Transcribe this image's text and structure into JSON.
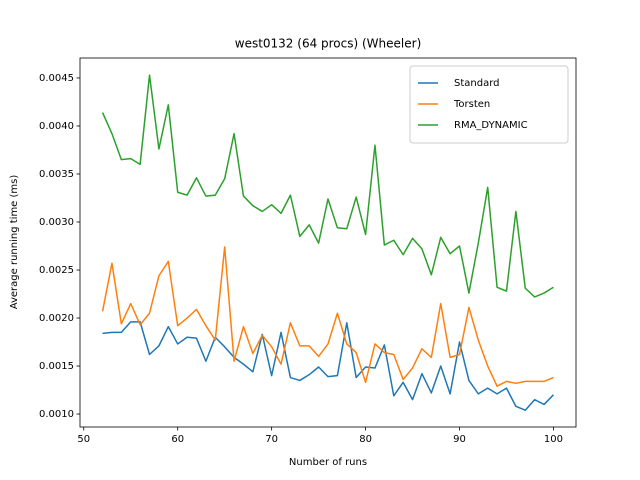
{
  "chart_data": {
    "type": "line",
    "title": "west0132 (64 procs) (Wheeler)",
    "xlabel": "Number of runs",
    "ylabel": "Average running time (ms)",
    "x": [
      52,
      53,
      54,
      55,
      56,
      57,
      58,
      59,
      60,
      61,
      62,
      63,
      64,
      65,
      66,
      67,
      68,
      69,
      70,
      71,
      72,
      73,
      74,
      75,
      76,
      77,
      78,
      79,
      80,
      81,
      82,
      83,
      84,
      85,
      86,
      87,
      88,
      89,
      90,
      91,
      92,
      93,
      94,
      95,
      96,
      97,
      98,
      99,
      100
    ],
    "series": [
      {
        "name": "Standard",
        "color": "#1f77b4",
        "values": [
          0.00184,
          0.00185,
          0.00185,
          0.00196,
          0.00196,
          0.00162,
          0.00171,
          0.00191,
          0.00173,
          0.0018,
          0.00179,
          0.00155,
          0.0018,
          0.0017,
          0.00159,
          0.00152,
          0.00144,
          0.00183,
          0.0014,
          0.00185,
          0.00138,
          0.00135,
          0.00141,
          0.00149,
          0.00139,
          0.0014,
          0.00195,
          0.00138,
          0.00149,
          0.00148,
          0.00172,
          0.00119,
          0.00133,
          0.00115,
          0.00142,
          0.00122,
          0.0015,
          0.00121,
          0.00175,
          0.00135,
          0.00121,
          0.00127,
          0.00121,
          0.00127,
          0.00108,
          0.00104,
          0.00115,
          0.0011,
          0.0012
        ]
      },
      {
        "name": "Torsten",
        "color": "#ff7f0e",
        "values": [
          0.00207,
          0.00257,
          0.00194,
          0.00215,
          0.00193,
          0.00205,
          0.00244,
          0.00259,
          0.00192,
          0.002,
          0.00209,
          0.00192,
          0.00177,
          0.00274,
          0.00155,
          0.00191,
          0.00163,
          0.00182,
          0.0017,
          0.00152,
          0.00195,
          0.00171,
          0.00171,
          0.0016,
          0.00173,
          0.00205,
          0.00173,
          0.00164,
          0.00133,
          0.00173,
          0.00164,
          0.00162,
          0.00136,
          0.00148,
          0.00168,
          0.00159,
          0.00215,
          0.00159,
          0.00162,
          0.00211,
          0.00177,
          0.0015,
          0.00129,
          0.00134,
          0.00132,
          0.00134,
          0.00134,
          0.00134,
          0.00138
        ]
      },
      {
        "name": "RMA_DYNAMIC",
        "color": "#2ca02c",
        "values": [
          0.00414,
          0.00392,
          0.00365,
          0.00366,
          0.0036,
          0.00453,
          0.00376,
          0.00422,
          0.00331,
          0.00328,
          0.00346,
          0.00327,
          0.00328,
          0.00345,
          0.00392,
          0.00327,
          0.00317,
          0.00311,
          0.00318,
          0.00309,
          0.00328,
          0.00285,
          0.00297,
          0.00278,
          0.00324,
          0.00294,
          0.00293,
          0.00326,
          0.00287,
          0.0038,
          0.00276,
          0.00281,
          0.00266,
          0.00283,
          0.00272,
          0.00245,
          0.00284,
          0.00267,
          0.00275,
          0.00226,
          0.00278,
          0.00336,
          0.00232,
          0.00228,
          0.00311,
          0.00231,
          0.00222,
          0.00226,
          0.00232
        ]
      }
    ],
    "xlim": [
      49.6,
      102.4
    ],
    "xticks": [
      50,
      60,
      70,
      80,
      90,
      100
    ],
    "ylim": [
      0.000865,
      0.004708
    ],
    "yticks": [
      {
        "value": 0.001,
        "label": "0.0010"
      },
      {
        "value": 0.0015,
        "label": "0.0015"
      },
      {
        "value": 0.002,
        "label": "0.0020"
      },
      {
        "value": 0.0025,
        "label": "0.0025"
      },
      {
        "value": 0.003,
        "label": "0.0030"
      },
      {
        "value": 0.0035,
        "label": "0.0035"
      },
      {
        "value": 0.004,
        "label": "0.0040"
      },
      {
        "value": 0.0045,
        "label": "0.0045"
      }
    ],
    "legend": "upper right"
  }
}
